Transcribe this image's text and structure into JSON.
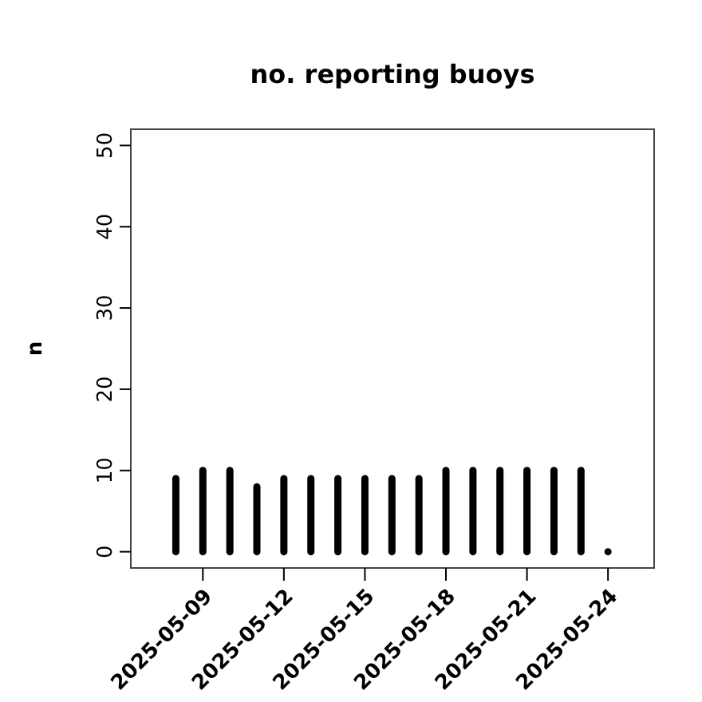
{
  "chart_data": {
    "type": "bar",
    "title": "no. reporting buoys",
    "ylabel": "n",
    "x": [
      "2025-05-08",
      "2025-05-09",
      "2025-05-10",
      "2025-05-11",
      "2025-05-12",
      "2025-05-13",
      "2025-05-14",
      "2025-05-15",
      "2025-05-16",
      "2025-05-17",
      "2025-05-18",
      "2025-05-19",
      "2025-05-20",
      "2025-05-21",
      "2025-05-22",
      "2025-05-23",
      "2025-05-24"
    ],
    "values": [
      9,
      10,
      10,
      8,
      9,
      9,
      9,
      9,
      9,
      9,
      10,
      10,
      10,
      10,
      10,
      10,
      0
    ],
    "color": "#000000",
    "xlim": [
      "2025-05-06T08:00",
      "2025-05-25T17:00"
    ],
    "xticks": [
      {
        "value": "2025-05-09",
        "label": "2025-05-09"
      },
      {
        "value": "2025-05-12",
        "label": "2025-05-12"
      },
      {
        "value": "2025-05-15",
        "label": "2025-05-15"
      },
      {
        "value": "2025-05-18",
        "label": "2025-05-18"
      },
      {
        "value": "2025-05-21",
        "label": "2025-05-21"
      },
      {
        "value": "2025-05-24",
        "label": "2025-05-24"
      }
    ],
    "ylim": [
      -2,
      52
    ],
    "yticks": [
      0,
      10,
      20,
      30,
      40,
      50
    ]
  }
}
